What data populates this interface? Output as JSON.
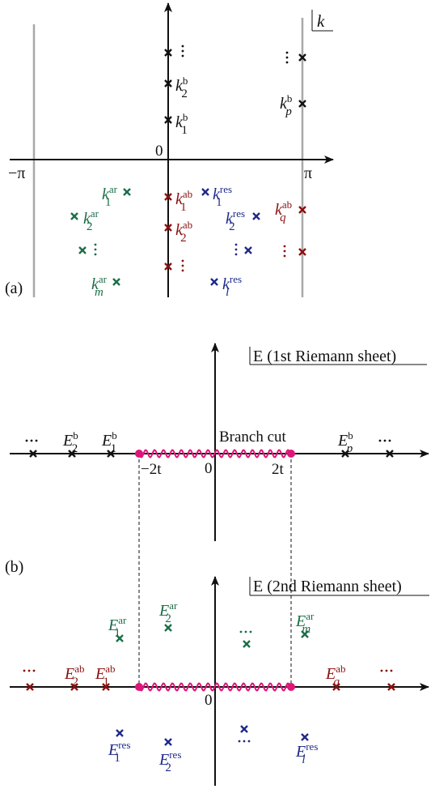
{
  "colors": {
    "black": "#111111",
    "green": "#1a6e46",
    "red": "#8b1010",
    "blue": "#1f2a8a",
    "magenta": "#e0157a",
    "gray": "#a8a8a8"
  },
  "panel_a": {
    "label": "(a)",
    "plane_label": "k",
    "origin_label": "0",
    "left_label": "−π",
    "right_label": "π",
    "points": [
      {
        "base": "k",
        "sup": "b",
        "sub": "2",
        "color": "black"
      },
      {
        "base": "k",
        "sup": "b",
        "sub": "1",
        "color": "black"
      },
      {
        "base": "k",
        "sup": "b",
        "sub": "p",
        "color": "black"
      },
      {
        "base": "k",
        "sup": "ar",
        "sub": "1",
        "color": "green"
      },
      {
        "base": "k",
        "sup": "ar",
        "sub": "2",
        "color": "green"
      },
      {
        "base": "k",
        "sup": "ar",
        "sub": "m",
        "color": "green"
      },
      {
        "base": "k",
        "sup": "ab",
        "sub": "1",
        "color": "red"
      },
      {
        "base": "k",
        "sup": "ab",
        "sub": "2",
        "color": "red"
      },
      {
        "base": "k",
        "sup": "ab",
        "sub": "q",
        "color": "red"
      },
      {
        "base": "k",
        "sup": "res",
        "sub": "1",
        "color": "blue"
      },
      {
        "base": "k",
        "sup": "res",
        "sub": "2",
        "color": "blue"
      },
      {
        "base": "k",
        "sup": "res",
        "sub": "l",
        "color": "blue"
      }
    ]
  },
  "panel_b": {
    "label": "(b)",
    "sheet1_label": "E (1st Riemann sheet)",
    "sheet2_label": "E (2nd Riemann sheet)",
    "branch_cut_label": "Branch cut",
    "minus_2t": "−2t",
    "plus_2t": "2t",
    "origin_label": "0",
    "sheet1_points": [
      {
        "base": "E",
        "sup": "b",
        "sub": "2",
        "color": "black"
      },
      {
        "base": "E",
        "sup": "b",
        "sub": "1",
        "color": "black"
      },
      {
        "base": "E",
        "sup": "b",
        "sub": "p",
        "color": "black"
      }
    ],
    "sheet2_points": [
      {
        "base": "E",
        "sup": "ar",
        "sub": "1",
        "color": "green"
      },
      {
        "base": "E",
        "sup": "ar",
        "sub": "2",
        "color": "green"
      },
      {
        "base": "E",
        "sup": "ar",
        "sub": "m",
        "color": "green"
      },
      {
        "base": "E",
        "sup": "ab",
        "sub": "2",
        "color": "red"
      },
      {
        "base": "E",
        "sup": "ab",
        "sub": "1",
        "color": "red"
      },
      {
        "base": "E",
        "sup": "ab",
        "sub": "q",
        "color": "red"
      },
      {
        "base": "E",
        "sup": "res",
        "sub": "1",
        "color": "blue"
      },
      {
        "base": "E",
        "sup": "res",
        "sub": "2",
        "color": "blue"
      },
      {
        "base": "E",
        "sup": "res",
        "sub": "l",
        "color": "blue"
      }
    ]
  }
}
